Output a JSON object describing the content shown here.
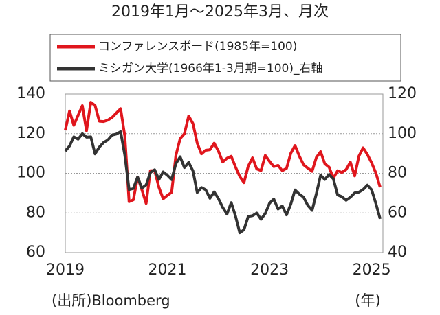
{
  "chart_data": {
    "type": "line",
    "title": "2019年1月～2025年3月、月次",
    "source": "(出所)Bloomberg",
    "x_unit": "(年)",
    "categories": [
      "2019",
      null,
      null,
      null,
      null,
      null,
      null,
      null,
      null,
      null,
      null,
      null,
      null,
      null,
      null,
      null,
      null,
      null,
      null,
      null,
      null,
      null,
      null,
      null,
      "2021",
      null,
      null,
      null,
      null,
      null,
      null,
      null,
      null,
      null,
      null,
      null,
      null,
      null,
      null,
      null,
      null,
      null,
      null,
      null,
      null,
      null,
      null,
      null,
      "2023",
      null,
      null,
      null,
      null,
      null,
      null,
      null,
      null,
      null,
      null,
      null,
      null,
      null,
      null,
      null,
      null,
      null,
      null,
      null,
      null,
      null,
      null,
      null,
      "2025",
      null,
      null
    ],
    "ylim": [
      60,
      140
    ],
    "yticks": [
      60,
      80,
      100,
      120,
      140
    ],
    "y2lim": [
      40,
      120
    ],
    "y2ticks": [
      40,
      60,
      80,
      100,
      120
    ],
    "grid": true,
    "series": [
      {
        "name": "コンファレンスボード(1985年=100)",
        "color": "#e0161d",
        "values": [
          121.7,
          131.4,
          124.2,
          129.2,
          134.1,
          121.5,
          135.8,
          134.2,
          126.3,
          126.1,
          126.8,
          128.2,
          130.4,
          132.6,
          118.8,
          85.7,
          86.6,
          98.1,
          91.7,
          84.8,
          101.3,
          101.4,
          92.9,
          87.1,
          88.9,
          90.4,
          109.0,
          117.5,
          120.0,
          128.9,
          125.1,
          115.2,
          109.8,
          111.6,
          111.9,
          115.2,
          111.1,
          105.7,
          107.6,
          108.6,
          103.2,
          98.4,
          95.3,
          103.6,
          107.8,
          102.2,
          101.4,
          109.0,
          106.0,
          103.4,
          104.0,
          101.3,
          102.5,
          110.1,
          114.0,
          108.7,
          104.3,
          102.6,
          101.0,
          108.0,
          110.9,
          104.8,
          103.1,
          97.5,
          101.3,
          100.4,
          101.9,
          105.6,
          98.7,
          108.7,
          112.8,
          109.5,
          105.3,
          100.1,
          92.9
        ]
      },
      {
        "name": "ミシガン大学(1966年1-3月期=100)_右軸",
        "color": "#333333",
        "axis": "y2",
        "values": [
          91.2,
          93.8,
          98.4,
          97.2,
          100.0,
          98.2,
          98.4,
          89.8,
          93.2,
          95.5,
          96.8,
          99.3,
          99.8,
          101.0,
          89.1,
          71.8,
          72.3,
          78.1,
          72.5,
          74.1,
          80.4,
          81.8,
          76.9,
          80.7,
          79.0,
          76.8,
          84.9,
          88.3,
          82.9,
          85.5,
          81.2,
          70.3,
          72.8,
          71.7,
          67.4,
          70.6,
          67.2,
          62.8,
          59.4,
          65.2,
          58.4,
          50.0,
          51.5,
          58.2,
          58.6,
          59.9,
          56.8,
          59.7,
          64.9,
          67.0,
          62.0,
          63.5,
          59.0,
          64.4,
          71.6,
          69.5,
          67.9,
          63.8,
          61.3,
          69.7,
          79.0,
          76.9,
          79.4,
          77.2,
          69.1,
          68.2,
          66.4,
          67.9,
          70.1,
          70.5,
          71.8,
          74.0,
          71.7,
          64.7,
          57.0
        ]
      }
    ]
  }
}
